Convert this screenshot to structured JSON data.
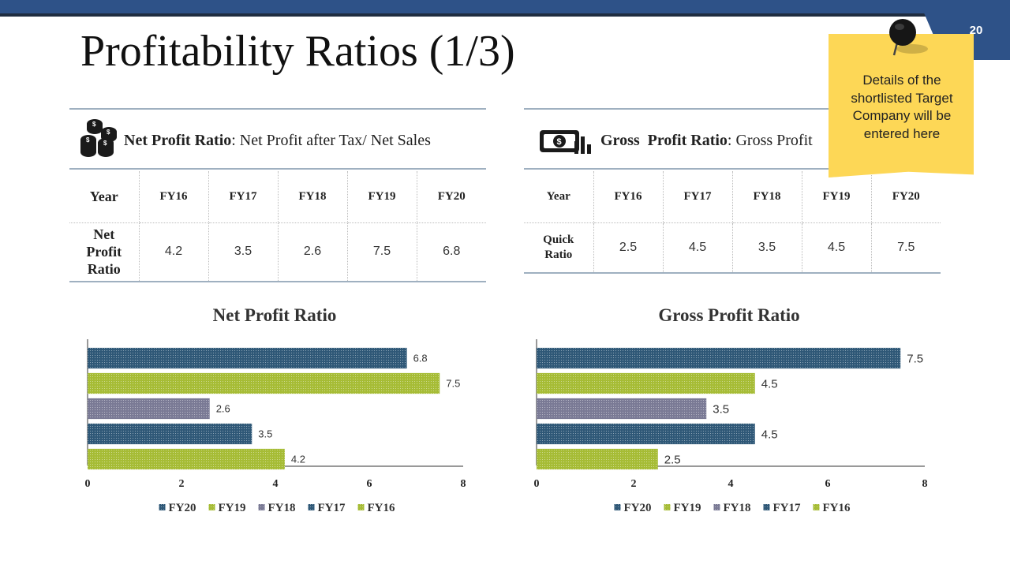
{
  "slide": {
    "title": "Profitability Ratios (1/3)",
    "page_number": "20"
  },
  "sticky_note": {
    "text": "Details of the shortlisted Target Company will be entered here"
  },
  "colors": {
    "header_blue": "#2e5288",
    "fy20": "#2f5877",
    "fy19": "#a6bc35",
    "fy18": "#7a7a95",
    "fy17": "#2f5877",
    "fy16": "#a6bc35",
    "note_yellow": "#fdd756"
  },
  "left": {
    "icon": "coin-stack-icon",
    "label": "Net Profit Ratio",
    "formula": ": Net Profit after Tax/ Net Sales",
    "table": {
      "header_label": "Year",
      "years": [
        "FY16",
        "FY17",
        "FY18",
        "FY19",
        "FY20"
      ],
      "row_label": "Net Profit Ratio",
      "values": [
        "4.2",
        "3.5",
        "2.6",
        "7.5",
        "6.8"
      ]
    }
  },
  "right": {
    "icon": "money-chart-icon",
    "label": "Gross  Profit Ratio",
    "formula": ": Gross Profit",
    "table": {
      "header_label": "Year",
      "years": [
        "FY16",
        "FY17",
        "FY18",
        "FY19",
        "FY20"
      ],
      "row_label": "Quick Ratio",
      "values": [
        "2.5",
        "4.5",
        "3.5",
        "4.5",
        "7.5"
      ]
    }
  },
  "chart_data": [
    {
      "type": "bar",
      "orientation": "horizontal",
      "title": "Net Profit Ratio",
      "categories": [
        "FY20",
        "FY19",
        "FY18",
        "FY17",
        "FY16"
      ],
      "values": [
        6.8,
        7.5,
        2.6,
        3.5,
        4.2
      ],
      "xlim": [
        0,
        8
      ],
      "xticks": [
        0,
        2,
        4,
        6,
        8
      ],
      "legend": [
        "FY20",
        "FY19",
        "FY18",
        "FY17",
        "FY16"
      ],
      "legend_position": "bottom"
    },
    {
      "type": "bar",
      "orientation": "horizontal",
      "title": "Gross Profit Ratio",
      "categories": [
        "FY20",
        "FY19",
        "FY18",
        "FY17",
        "FY16"
      ],
      "values": [
        7.5,
        4.5,
        3.5,
        4.5,
        2.5
      ],
      "xlim": [
        0,
        8
      ],
      "xticks": [
        0,
        2,
        4,
        6,
        8
      ],
      "legend": [
        "FY20",
        "FY19",
        "FY18",
        "FY17",
        "FY16"
      ],
      "legend_position": "bottom"
    }
  ]
}
